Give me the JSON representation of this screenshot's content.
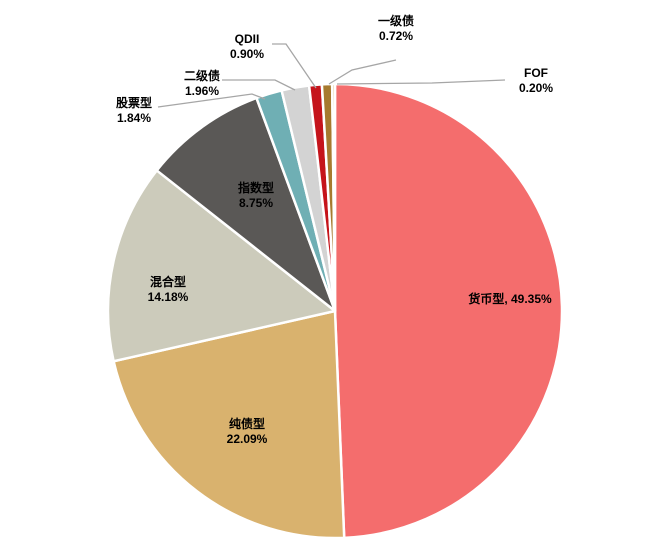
{
  "chart_data": {
    "type": "pie",
    "title": "",
    "categories": [
      "货币型",
      "纯债型",
      "混合型",
      "指数型",
      "股票型",
      "二级债",
      "QDII",
      "一级债",
      "FOF"
    ],
    "values": [
      49.35,
      22.09,
      14.18,
      8.75,
      1.84,
      1.96,
      0.9,
      0.72,
      0.2
    ],
    "value_labels": [
      "49.35%",
      "22.09%",
      "14.18%",
      "8.75%",
      "1.84%",
      "1.96%",
      "0.90%",
      "0.72%",
      "0.20%"
    ],
    "colors": [
      "#F46D6D",
      "#D9B26E",
      "#CCCBBB",
      "#5A5856",
      "#6FAFB4",
      "#D3D3D3",
      "#C5141B",
      "#A67A2E",
      "#C9A74E"
    ],
    "legend": "none",
    "start_angle_deg": 0,
    "direction": "clockwise"
  }
}
